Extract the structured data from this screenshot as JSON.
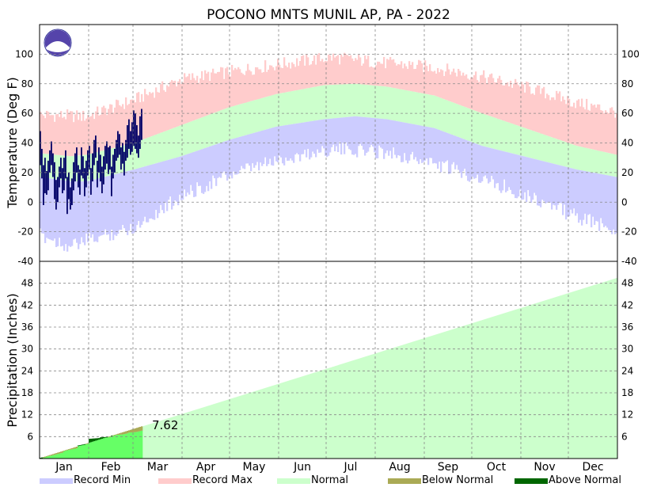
{
  "colors": {
    "record_min": "#ccccff",
    "record_max": "#ffcccc",
    "normal": "#ccffcc",
    "observed_temp": "#000066",
    "below_normal": "#aaaa55",
    "above_normal": "#006600",
    "observed_precip_fill": "#66ff66",
    "grid": "#888888"
  },
  "chart_data": {
    "title": "POCONO MNTS MUNIL AP, PA - 2022",
    "months": [
      "Jan",
      "Feb",
      "Mar",
      "Apr",
      "May",
      "Jun",
      "Jul",
      "Aug",
      "Sep",
      "Oct",
      "Nov",
      "Dec"
    ],
    "temperature": {
      "type": "bar",
      "ylabel": "Temperature (Deg F)",
      "ylim": [
        -40,
        120
      ],
      "yticks": [
        -40,
        -20,
        0,
        20,
        40,
        60,
        80,
        100
      ],
      "normal_high_anchor_days": [
        1,
        20,
        30,
        60,
        90,
        120,
        150,
        180,
        200,
        220,
        250,
        280,
        310,
        340,
        365
      ],
      "normal_high_anchor_values": [
        33,
        31,
        32,
        40,
        52,
        64,
        73,
        79,
        80,
        78,
        72,
        60,
        49,
        38,
        32
      ],
      "normal_low_anchor_days": [
        1,
        20,
        30,
        60,
        90,
        120,
        150,
        180,
        200,
        220,
        250,
        280,
        310,
        340,
        365
      ],
      "normal_low_anchor_values": [
        17,
        14,
        14,
        22,
        31,
        42,
        51,
        56,
        58,
        56,
        50,
        38,
        30,
        22,
        17
      ],
      "record_max_anchor_days": [
        1,
        30,
        60,
        90,
        120,
        150,
        185,
        220,
        250,
        280,
        310,
        340,
        365
      ],
      "record_max_anchor_values": [
        58,
        57,
        68,
        82,
        87,
        92,
        97,
        93,
        90,
        84,
        76,
        66,
        60
      ],
      "record_min_anchor_days": [
        1,
        20,
        30,
        60,
        90,
        120,
        150,
        185,
        220,
        250,
        280,
        310,
        340,
        365
      ],
      "record_min_anchor_values": [
        -20,
        -28,
        -24,
        -15,
        6,
        20,
        30,
        38,
        36,
        28,
        18,
        6,
        -8,
        -17
      ],
      "observed_high": [
        48,
        36,
        25,
        30,
        21,
        28,
        35,
        41,
        33,
        27,
        15,
        17,
        24,
        30,
        23,
        30,
        35,
        17,
        20,
        10,
        16,
        27,
        33,
        37,
        25,
        22,
        37,
        31,
        23,
        28,
        35,
        38,
        23,
        33,
        42,
        45,
        28,
        37,
        32,
        24,
        31,
        38,
        41,
        37,
        38,
        24,
        32,
        36,
        42,
        48,
        46,
        37,
        40,
        34,
        42,
        52,
        56,
        48,
        54,
        62,
        60,
        52,
        45,
        58,
        63
      ],
      "observed_low": [
        25,
        16,
        -2,
        6,
        5,
        8,
        20,
        25,
        17,
        2,
        -5,
        0,
        10,
        16,
        6,
        8,
        16,
        -8,
        2,
        -5,
        -2,
        8,
        14,
        20,
        10,
        5,
        18,
        16,
        4,
        10,
        18,
        22,
        5,
        14,
        25,
        30,
        10,
        20,
        14,
        6,
        12,
        22,
        26,
        19,
        22,
        4,
        16,
        20,
        28,
        30,
        32,
        22,
        26,
        18,
        28,
        30,
        36,
        32,
        34,
        38,
        36,
        33,
        30,
        36,
        42
      ]
    },
    "precipitation": {
      "type": "area",
      "ylabel": "Precipitation (Inches)",
      "ylim": [
        0,
        54
      ],
      "yticks": [
        6,
        12,
        18,
        24,
        30,
        36,
        42,
        48
      ],
      "normal_cumulative_day_365": 49.5,
      "observed_cumulative_days": [
        1,
        8,
        15,
        16,
        24,
        25,
        31,
        32,
        38,
        39,
        45,
        46,
        50,
        53,
        56,
        57,
        60,
        62,
        64,
        65
      ],
      "observed_cumulative_values": [
        0.2,
        0.8,
        1.6,
        2.1,
        2.8,
        3.6,
        4.1,
        5.4,
        5.6,
        5.8,
        6.0,
        6.3,
        6.5,
        6.6,
        6.9,
        7.1,
        7.2,
        7.3,
        7.5,
        7.62
      ],
      "annotation": "7.62"
    },
    "legend": [
      {
        "label": "Record Min",
        "color_key": "record_min"
      },
      {
        "label": "Record Max",
        "color_key": "record_max"
      },
      {
        "label": "Normal",
        "color_key": "normal"
      },
      {
        "label": "Below Normal",
        "color_key": "below_normal"
      },
      {
        "label": "Above Normal",
        "color_key": "above_normal"
      }
    ]
  }
}
